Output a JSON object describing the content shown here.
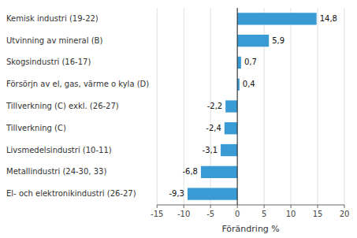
{
  "chart_data": {
    "type": "bar",
    "orientation": "horizontal",
    "categories": [
      "El- och elektronikindustri (26-27)",
      "Metallindustri (24-30, 33)",
      "Livsmedelsindustri (10-11)",
      "Tillverkning (C)",
      "Tillverkning (C) exkl. (26-27)",
      "Försörjn av el, gas, värme o kyla (D)",
      "Skogsindustri (16-17)",
      "Utvinning av mineral (B)",
      "Kemisk industri (19-22)"
    ],
    "values": [
      -9.3,
      -6.8,
      -3.1,
      -2.4,
      -2.2,
      0.4,
      0.7,
      5.9,
      14.8
    ],
    "value_labels": [
      "-9,3",
      "-6,8",
      "-3,1",
      "-2,4",
      "-2,2",
      "0,4",
      "0,7",
      "5,9",
      "14,8"
    ],
    "data_labels": true,
    "color": "#3a9ad4",
    "xlabel": "Förändring %",
    "xlim": [
      -15,
      20
    ],
    "xticks": [
      -15,
      -10,
      -5,
      0,
      5,
      10,
      15,
      20
    ],
    "grid": true
  }
}
